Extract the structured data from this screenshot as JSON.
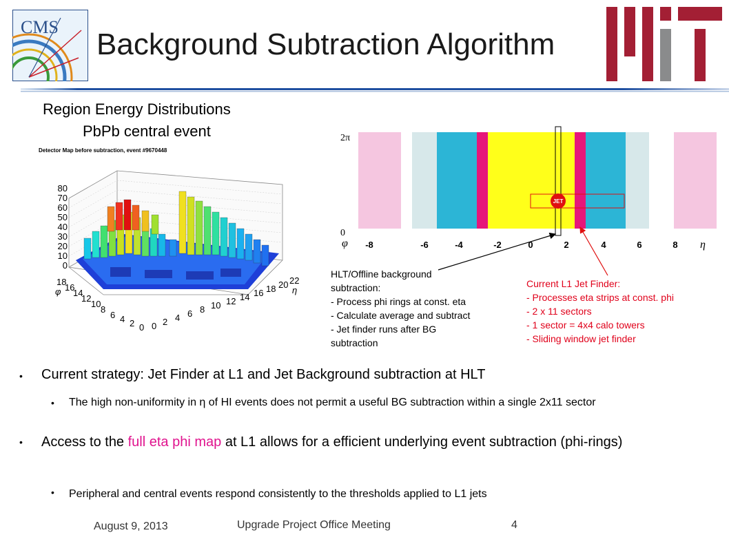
{
  "slide": {
    "title": "Background Subtraction Algorithm",
    "subtitle_line1": "Region Energy Distributions",
    "subtitle_line2": "PbPb central event"
  },
  "logos": {
    "cms_text": "CMS"
  },
  "lego_plot": {
    "title": "Detector Map before subtraction, event #9670448",
    "z_ticks": [
      "0",
      "10",
      "20",
      "30",
      "40",
      "50",
      "60",
      "70",
      "80"
    ],
    "phi_ticks": [
      "18",
      "16",
      "14",
      "12",
      "10",
      "8",
      "6",
      "4",
      "2",
      "0"
    ],
    "eta_ticks": [
      "0",
      "2",
      "4",
      "6",
      "8",
      "10",
      "12",
      "14",
      "16",
      "18",
      "20",
      "22"
    ],
    "phi_axis_label": "φ",
    "eta_axis_label": "η"
  },
  "eta_phi_map": {
    "phi_top_label": "2π",
    "phi_bottom_label": "0",
    "phi_axis_label": "φ",
    "eta_axis_label": "η",
    "eta_ticks": [
      "-8",
      "-6",
      "-4",
      "-2",
      "0",
      "2",
      "4",
      "6",
      "8"
    ],
    "jet_label": "JET",
    "colors": {
      "pink": "#f5c6e0",
      "lightblue": "#d7e8ea",
      "blue": "#2cb5d6",
      "yellow": "#ffff1a",
      "magenta": "#e6177a",
      "red": "#e01010"
    }
  },
  "notes": {
    "hlt": "HLT/Offline background\nsubtraction:\n- Process phi rings at const. eta\n- Calculate average and subtract\n- Jet finder runs after BG\nsubtraction",
    "l1": "Current L1 Jet Finder:\n- Processes eta strips at const. phi\n- 2 x 11 sectors\n- 1 sector = 4x4 calo towers\n- Sliding window jet finder"
  },
  "bullets": {
    "b1": "Current strategy: Jet Finder at L1 and Jet Background subtraction at HLT",
    "b1_sub": "The high non-uniformity in η of HI events does not permit a useful BG subtraction within a single 2x11 sector",
    "b2_pre": "Access to the ",
    "b2_highlight": "full eta phi map",
    "b2_post": " at L1 allows for a efficient underlying event subtraction (phi-rings)",
    "b2_sub": "Peripheral and central events respond consistently to the thresholds applied to L1 jets"
  },
  "footer": {
    "date": "August 9, 2013",
    "meeting": "Upgrade Project Office Meeting",
    "page": "4"
  }
}
